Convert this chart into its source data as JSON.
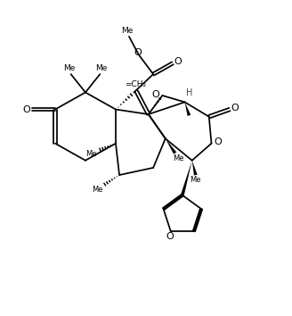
{
  "bg": "#ffffff",
  "lc": "#000000",
  "lw": 1.25,
  "fig_w": 3.28,
  "fig_h": 3.54,
  "dpi": 100,
  "xlim": [
    -1,
    11
  ],
  "ylim": [
    -0.5,
    11.5
  ]
}
